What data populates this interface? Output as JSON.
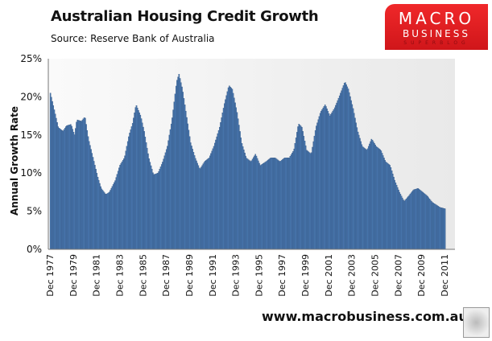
{
  "header": {
    "title": "Australian Housing Credit Growth",
    "source": "Source: Reserve Bank of Australia"
  },
  "logo": {
    "line1": "MACRO",
    "line2": "BUSINESS",
    "line3": "SUPERBLOG"
  },
  "footer": {
    "url": "www.macrobusiness.com.au",
    "icon": "wolf-icon"
  },
  "colors": {
    "bar": "#4a78b0",
    "bar_edge": "#2c4f7c",
    "plot_bg_left": "#fafafa",
    "plot_bg_right": "#e9e9e9"
  },
  "chart_data": {
    "type": "bar",
    "title": "Australian Housing Credit Growth",
    "ylabel": "Annual Growth Rate",
    "xlabel": "",
    "ylim": [
      0,
      25
    ],
    "yticks": [
      "0%",
      "5%",
      "10%",
      "15%",
      "20%",
      "25%"
    ],
    "yvalues": [
      0,
      5,
      10,
      15,
      20,
      25
    ],
    "xticks": [
      "Dec 1977",
      "Dec 1979",
      "Dec 1981",
      "Dec 1983",
      "Dec 1985",
      "Dec 1987",
      "Dec 1989",
      "Dec 1991",
      "Dec 1993",
      "Dec 1995",
      "Dec 1997",
      "Dec 1999",
      "Dec 2001",
      "Dec 2003",
      "Dec 2005",
      "Dec 2007",
      "Dec 2009",
      "Dec 2011"
    ],
    "xrange": [
      1977.92,
      2012.2
    ],
    "series": [
      {
        "name": "Annual Growth Rate (%)",
        "points": [
          [
            1977.92,
            20.5
          ],
          [
            1978.3,
            18
          ],
          [
            1978.6,
            16
          ],
          [
            1979.0,
            15.5
          ],
          [
            1979.3,
            16.2
          ],
          [
            1979.7,
            16.4
          ],
          [
            1980.0,
            15
          ],
          [
            1980.2,
            17
          ],
          [
            1980.6,
            16.8
          ],
          [
            1980.9,
            17.4
          ],
          [
            1981.2,
            14.5
          ],
          [
            1981.6,
            12
          ],
          [
            1982.0,
            9.5
          ],
          [
            1982.3,
            8
          ],
          [
            1982.7,
            7.2
          ],
          [
            1983.0,
            7.5
          ],
          [
            1983.5,
            9
          ],
          [
            1983.9,
            11
          ],
          [
            1984.3,
            12
          ],
          [
            1984.7,
            15
          ],
          [
            1985.0,
            16.5
          ],
          [
            1985.3,
            19
          ],
          [
            1985.7,
            17.5
          ],
          [
            1986.0,
            15.5
          ],
          [
            1986.4,
            12
          ],
          [
            1986.8,
            9.8
          ],
          [
            1987.2,
            10
          ],
          [
            1987.6,
            11.5
          ],
          [
            1988.0,
            13.5
          ],
          [
            1988.4,
            17
          ],
          [
            1988.8,
            22
          ],
          [
            1989.0,
            23
          ],
          [
            1989.3,
            21
          ],
          [
            1989.7,
            17
          ],
          [
            1990.0,
            14
          ],
          [
            1990.4,
            12
          ],
          [
            1990.8,
            10.5
          ],
          [
            1991.2,
            11.5
          ],
          [
            1991.6,
            12
          ],
          [
            1992.0,
            13.5
          ],
          [
            1992.5,
            16
          ],
          [
            1992.9,
            19
          ],
          [
            1993.3,
            21.5
          ],
          [
            1993.6,
            21
          ],
          [
            1994.0,
            18
          ],
          [
            1994.4,
            14
          ],
          [
            1994.8,
            12
          ],
          [
            1995.2,
            11.5
          ],
          [
            1995.6,
            12.5
          ],
          [
            1996.0,
            11
          ],
          [
            1996.5,
            11.5
          ],
          [
            1996.9,
            12
          ],
          [
            1997.3,
            12
          ],
          [
            1997.7,
            11.5
          ],
          [
            1998.1,
            12
          ],
          [
            1998.5,
            12
          ],
          [
            1998.9,
            13
          ],
          [
            1999.3,
            16.5
          ],
          [
            1999.6,
            16
          ],
          [
            2000.0,
            13
          ],
          [
            2000.4,
            12.5
          ],
          [
            2000.8,
            16
          ],
          [
            2001.2,
            18
          ],
          [
            2001.6,
            19
          ],
          [
            2002.0,
            17.5
          ],
          [
            2002.4,
            18.5
          ],
          [
            2002.8,
            20
          ],
          [
            2003.3,
            22
          ],
          [
            2003.6,
            21
          ],
          [
            2004.0,
            18.5
          ],
          [
            2004.4,
            15.5
          ],
          [
            2004.8,
            13.5
          ],
          [
            2005.2,
            13
          ],
          [
            2005.6,
            14.5
          ],
          [
            2006.0,
            13.5
          ],
          [
            2006.4,
            13
          ],
          [
            2006.8,
            11.5
          ],
          [
            2007.2,
            11
          ],
          [
            2007.6,
            9
          ],
          [
            2008.0,
            7.5
          ],
          [
            2008.4,
            6.3
          ],
          [
            2008.8,
            7
          ],
          [
            2009.2,
            7.8
          ],
          [
            2009.6,
            8
          ],
          [
            2010.0,
            7.5
          ],
          [
            2010.4,
            7
          ],
          [
            2010.8,
            6.2
          ],
          [
            2011.2,
            5.8
          ],
          [
            2011.5,
            5.5
          ],
          [
            2012.0,
            5.3
          ]
        ]
      }
    ],
    "grid": false,
    "legend": "none"
  }
}
